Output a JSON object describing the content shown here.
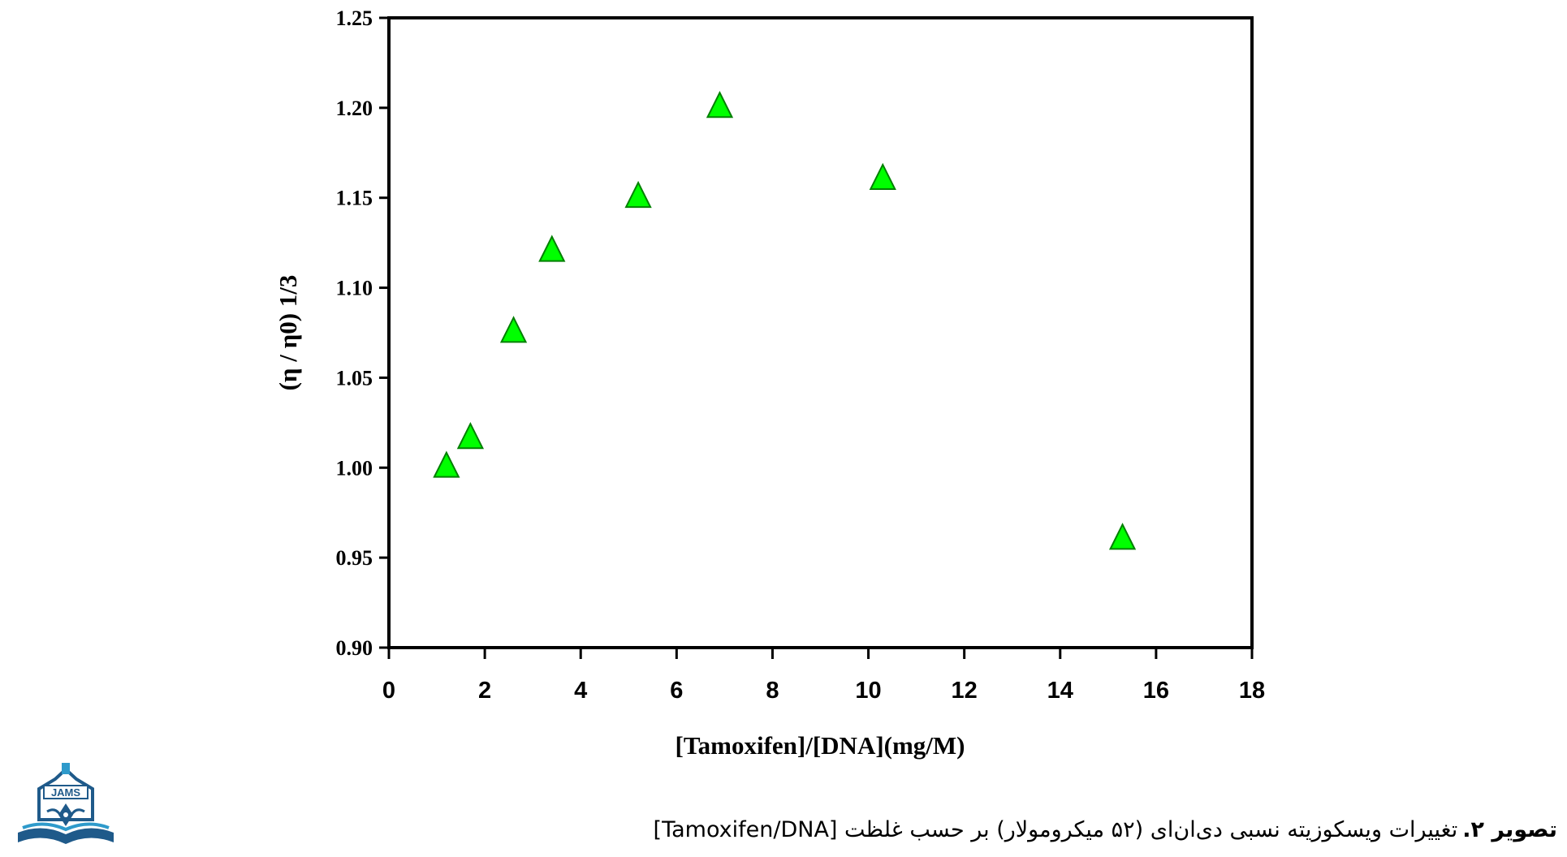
{
  "chart_data": {
    "type": "scatter",
    "xlabel": "[Tamoxifen]/[DNA](mg/M)",
    "ylabel": "(η / η0) 1/3",
    "xlim": [
      0,
      18
    ],
    "ylim": [
      0.9,
      1.25
    ],
    "x_ticks": [
      "0",
      "2",
      "4",
      "6",
      "8",
      "10",
      "12",
      "14",
      "16",
      "18"
    ],
    "y_ticks": [
      "0.90",
      "0.95",
      "1.00",
      "1.05",
      "1.10",
      "1.15",
      "1.20",
      "1.25"
    ],
    "grid": false,
    "legend": "none",
    "marker": "triangle",
    "marker_color": "#00ff00",
    "marker_edge_color": "#008000",
    "series": [
      {
        "x": [
          1.2,
          1.7,
          2.6,
          3.4,
          5.2,
          6.9,
          10.3,
          15.3
        ],
        "y": [
          1.0,
          1.016,
          1.075,
          1.12,
          1.15,
          1.2,
          1.16,
          0.96
        ]
      }
    ]
  },
  "caption": {
    "label": "تصویر ۲.",
    "text": "تغییرات ویسکوزیته نسبی دی‌ان‌ای (۵۲ میکرومولار) بر حسب غلظت [Tamoxifen/DNA]"
  },
  "logo": {
    "text": "JAMS"
  }
}
